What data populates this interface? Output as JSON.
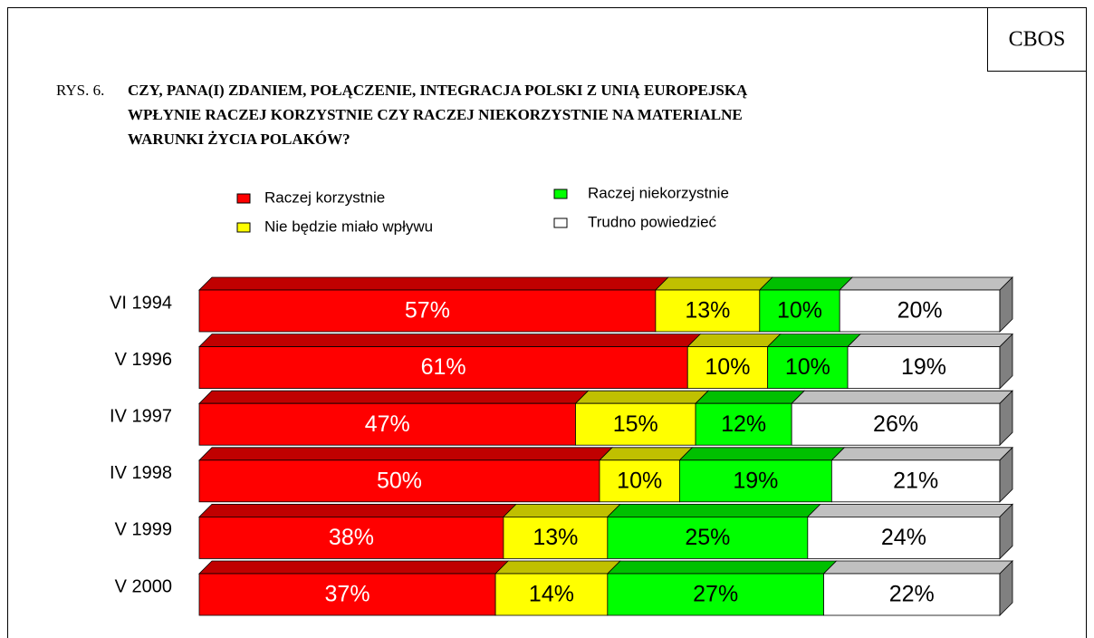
{
  "chart_data": {
    "type": "stacked-bar-3d",
    "source": "CBOS",
    "figure_label": "RYS. 6.",
    "title_lines": [
      "CZY, PANA(I) ZDANIEM,  POŁĄCZENIE, INTEGRACJA POLSKI Z UNIĄ EUROPEJSKĄ",
      "WPŁYNIE RACZEJ KORZYSTNIE CZY RACZEJ NIEKORZYSTNIE NA MATERIALNE",
      "WARUNKI ŻYCIA POLAKÓW?"
    ],
    "categories": [
      "VI 1994",
      "V 1996",
      "IV 1997",
      "IV 1998",
      "V 1999",
      "V 2000"
    ],
    "xlim": [
      0,
      100
    ],
    "series": [
      {
        "name": "Raczej korzystnie",
        "color": "#ff0000",
        "top_color": "#c00000",
        "label_color": "#ffffff",
        "values": [
          57,
          61,
          47,
          50,
          38,
          37
        ],
        "value_labels": [
          "57%",
          "61%",
          "47%",
          "50%",
          "38%",
          "37%"
        ]
      },
      {
        "name": "Nie będzie miało wpływu",
        "color": "#ffff00",
        "top_color": "#c0c000",
        "label_color": "#000000",
        "values": [
          13,
          10,
          15,
          10,
          13,
          14
        ],
        "value_labels": [
          "13%",
          "10%",
          "15%",
          "10%",
          "13%",
          "14%"
        ]
      },
      {
        "name": "Raczej niekorzystnie",
        "color": "#00ff00",
        "top_color": "#00c000",
        "label_color": "#000000",
        "values": [
          10,
          10,
          12,
          19,
          25,
          27
        ],
        "value_labels": [
          "10%",
          "10%",
          "12%",
          "19%",
          "25%",
          "27%"
        ]
      },
      {
        "name": "Trudno powiedzieć",
        "color": "#ffffff",
        "top_color": "#c0c0c0",
        "label_color": "#000000",
        "values": [
          20,
          19,
          26,
          21,
          24,
          22
        ],
        "value_labels": [
          "20%",
          "19%",
          "26%",
          "21%",
          "24%",
          "22%"
        ]
      }
    ]
  }
}
